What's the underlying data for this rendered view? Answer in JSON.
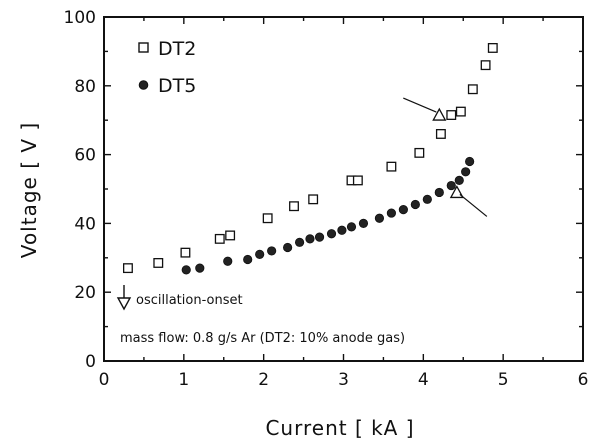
{
  "chart_data": {
    "type": "scatter",
    "xlabel": "Current [ kA ]",
    "ylabel": "Voltage [ V ]",
    "xlim": [
      0,
      6
    ],
    "ylim": [
      0,
      100
    ],
    "x_ticks": [
      0,
      1,
      2,
      3,
      4,
      5,
      6
    ],
    "y_ticks": [
      0,
      20,
      40,
      60,
      80,
      100
    ],
    "grid": false,
    "legend_position": "top-left",
    "series": [
      {
        "name": "DT2",
        "marker": "open-square",
        "x": [
          0.3,
          0.68,
          1.02,
          1.45,
          1.58,
          2.05,
          2.38,
          2.62,
          3.1,
          3.18,
          3.6,
          3.95,
          4.22,
          4.35,
          4.47,
          4.62,
          4.78,
          4.87
        ],
        "y": [
          27,
          28.5,
          31.5,
          35.5,
          36.5,
          41.5,
          45,
          47,
          52.5,
          52.5,
          56.5,
          60.5,
          66,
          71.5,
          72.5,
          79,
          86,
          91
        ]
      },
      {
        "name": "DT5",
        "marker": "filled-circle",
        "x": [
          1.03,
          1.2,
          1.55,
          1.8,
          1.95,
          2.1,
          2.3,
          2.45,
          2.58,
          2.7,
          2.85,
          2.98,
          3.1,
          3.25,
          3.45,
          3.6,
          3.75,
          3.9,
          4.05,
          4.2,
          4.35,
          4.45,
          4.53,
          4.58
        ],
        "y": [
          26.5,
          27,
          29,
          29.5,
          31,
          32,
          33,
          34.5,
          35.5,
          36,
          37,
          38,
          39,
          40,
          41.5,
          43,
          44,
          45.5,
          47,
          49,
          51,
          52.5,
          55,
          58
        ]
      }
    ],
    "annotations": {
      "onset_label": "oscillation-onset",
      "mass_flow": "mass flow: 0.8 g/s Ar (DT2: 10% anode gas)",
      "onset_markers": [
        {
          "series": "DT2",
          "x": 4.2,
          "y": 71.5
        },
        {
          "series": "DT5",
          "x": 4.42,
          "y": 49
        }
      ]
    }
  }
}
